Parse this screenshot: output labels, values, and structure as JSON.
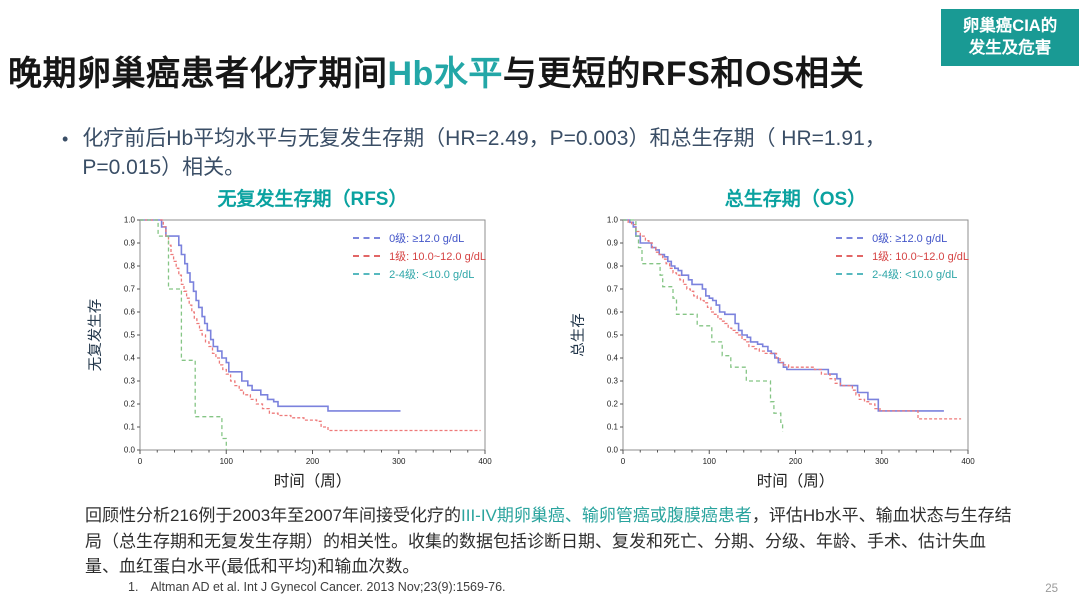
{
  "colors": {
    "accent_teal": "#199a94",
    "title_highlight_teal": "#23a7a7",
    "chart_title_teal": "#0aa2a0",
    "bullet_navy": "#3a4e66",
    "curve_blue": "#7b82dd",
    "curve_red": "#ee7a7a",
    "curve_green": "#85c585"
  },
  "badge": {
    "line1": "卵巢癌CIA的",
    "line2": "发生及危害"
  },
  "title": {
    "pre": "晚期卵巢癌患者化疗期间",
    "highlight": "Hb水平",
    "post": "与更短的RFS和OS相关"
  },
  "bullet": {
    "marker": "•",
    "text": "化疗前后Hb平均水平与无复发生存期（HR=2.49，P=0.003）和总生存期（ HR=1.91，P=0.015）相关。"
  },
  "chart_data": [
    {
      "type": "line",
      "title": "无复发生存期（RFS）",
      "xlabel": "时间（周）",
      "ylabel": "无复发生存",
      "xlim": [
        0,
        400
      ],
      "ylim": [
        0,
        1
      ],
      "xticks": [
        0,
        100,
        200,
        300,
        400
      ],
      "yticks": [
        0.0,
        0.1,
        0.2,
        0.3,
        0.4,
        0.5,
        0.6,
        0.7,
        0.8,
        0.9,
        1.0
      ],
      "grid": false,
      "legend_position": "top-right-inside",
      "series": [
        {
          "name": "0级:  ≥12.0 g/dL",
          "color": "#7b82dd",
          "dash": "",
          "width": 1.6,
          "text_color": "#4355c8",
          "dash_color": "#7b84dc",
          "points": [
            [
              0,
              1.0
            ],
            [
              22,
              1.0
            ],
            [
              25,
              0.97
            ],
            [
              30,
              0.93
            ],
            [
              42,
              0.93
            ],
            [
              45,
              0.89
            ],
            [
              48,
              0.85
            ],
            [
              52,
              0.81
            ],
            [
              55,
              0.77
            ],
            [
              58,
              0.73
            ],
            [
              62,
              0.69
            ],
            [
              65,
              0.65
            ],
            [
              68,
              0.62
            ],
            [
              72,
              0.58
            ],
            [
              75,
              0.55
            ],
            [
              78,
              0.52
            ],
            [
              82,
              0.48
            ],
            [
              85,
              0.45
            ],
            [
              90,
              0.43
            ],
            [
              95,
              0.4
            ],
            [
              100,
              0.38
            ],
            [
              103,
              0.34
            ],
            [
              115,
              0.34
            ],
            [
              118,
              0.3
            ],
            [
              125,
              0.28
            ],
            [
              130,
              0.26
            ],
            [
              140,
              0.24
            ],
            [
              148,
              0.22
            ],
            [
              155,
              0.21
            ],
            [
              160,
              0.19
            ],
            [
              216,
              0.19
            ],
            [
              218,
              0.17
            ],
            [
              302,
              0.17
            ]
          ]
        },
        {
          "name": "1级:  10.0~12.0 g/dL",
          "color": "#ee7a7a",
          "dash": "3 2",
          "width": 1.3,
          "text_color": "#d54343",
          "dash_color": "#e26666",
          "points": [
            [
              0,
              1.0
            ],
            [
              25,
              1.0
            ],
            [
              27,
              0.97
            ],
            [
              30,
              0.93
            ],
            [
              33,
              0.89
            ],
            [
              36,
              0.85
            ],
            [
              39,
              0.82
            ],
            [
              42,
              0.79
            ],
            [
              45,
              0.76
            ],
            [
              48,
              0.72
            ],
            [
              51,
              0.69
            ],
            [
              54,
              0.66
            ],
            [
              57,
              0.63
            ],
            [
              60,
              0.6
            ],
            [
              63,
              0.57
            ],
            [
              66,
              0.55
            ],
            [
              69,
              0.52
            ],
            [
              72,
              0.5
            ],
            [
              76,
              0.47
            ],
            [
              80,
              0.45
            ],
            [
              84,
              0.42
            ],
            [
              88,
              0.4
            ],
            [
              92,
              0.37
            ],
            [
              96,
              0.35
            ],
            [
              100,
              0.33
            ],
            [
              105,
              0.3
            ],
            [
              110,
              0.28
            ],
            [
              115,
              0.26
            ],
            [
              120,
              0.24
            ],
            [
              128,
              0.22
            ],
            [
              135,
              0.2
            ],
            [
              142,
              0.18
            ],
            [
              150,
              0.16
            ],
            [
              160,
              0.15
            ],
            [
              175,
              0.14
            ],
            [
              190,
              0.13
            ],
            [
              205,
              0.125
            ],
            [
              210,
              0.1
            ],
            [
              218,
              0.085
            ],
            [
              395,
              0.085
            ]
          ]
        },
        {
          "name": "2-4级:  <10.0 g/dL",
          "color": "#85c585",
          "dash": "4 3",
          "width": 1.3,
          "text_color": "#2ea6a8",
          "dash_color": "#57b9bf",
          "points": [
            [
              0,
              1.0
            ],
            [
              20,
              1.0
            ],
            [
              21,
              0.93
            ],
            [
              31,
              0.93
            ],
            [
              33,
              0.7
            ],
            [
              47,
              0.7
            ],
            [
              48,
              0.39
            ],
            [
              62,
              0.39
            ],
            [
              64,
              0.145
            ],
            [
              93,
              0.145
            ],
            [
              95,
              0.05
            ],
            [
              99,
              0.05
            ],
            [
              100,
              0.0
            ]
          ]
        }
      ]
    },
    {
      "type": "line",
      "title": "总生存期（OS）",
      "xlabel": "时间（周）",
      "ylabel": "总生存",
      "xlim": [
        0,
        400
      ],
      "ylim": [
        0,
        1
      ],
      "xticks": [
        0,
        100,
        200,
        300,
        400
      ],
      "yticks": [
        0.0,
        0.1,
        0.2,
        0.3,
        0.4,
        0.5,
        0.6,
        0.7,
        0.8,
        0.9,
        1.0
      ],
      "grid": false,
      "legend_position": "top-right-inside",
      "series": [
        {
          "name": "0级:  ≥12.0 g/dL",
          "color": "#7b82dd",
          "dash": "",
          "width": 1.6,
          "text_color": "#4355c8",
          "dash_color": "#7b84dc",
          "points": [
            [
              0,
              1.0
            ],
            [
              8,
              0.99
            ],
            [
              12,
              0.97
            ],
            [
              15,
              0.93
            ],
            [
              20,
              0.9
            ],
            [
              30,
              0.9
            ],
            [
              33,
              0.88
            ],
            [
              38,
              0.87
            ],
            [
              42,
              0.85
            ],
            [
              48,
              0.84
            ],
            [
              52,
              0.82
            ],
            [
              56,
              0.8
            ],
            [
              60,
              0.79
            ],
            [
              64,
              0.78
            ],
            [
              68,
              0.76
            ],
            [
              72,
              0.76
            ],
            [
              76,
              0.74
            ],
            [
              80,
              0.72
            ],
            [
              88,
              0.72
            ],
            [
              92,
              0.7
            ],
            [
              96,
              0.67
            ],
            [
              100,
              0.66
            ],
            [
              104,
              0.65
            ],
            [
              108,
              0.63
            ],
            [
              112,
              0.6
            ],
            [
              118,
              0.59
            ],
            [
              126,
              0.59
            ],
            [
              130,
              0.55
            ],
            [
              134,
              0.52
            ],
            [
              138,
              0.5
            ],
            [
              144,
              0.49
            ],
            [
              148,
              0.47
            ],
            [
              156,
              0.46
            ],
            [
              162,
              0.45
            ],
            [
              168,
              0.43
            ],
            [
              172,
              0.42
            ],
            [
              176,
              0.4
            ],
            [
              180,
              0.38
            ],
            [
              186,
              0.36
            ],
            [
              190,
              0.35
            ],
            [
              230,
              0.35
            ],
            [
              238,
              0.33
            ],
            [
              248,
              0.31
            ],
            [
              252,
              0.28
            ],
            [
              268,
              0.28
            ],
            [
              272,
              0.25
            ],
            [
              282,
              0.25
            ],
            [
              284,
              0.22
            ],
            [
              294,
              0.22
            ],
            [
              296,
              0.17
            ],
            [
              372,
              0.17
            ]
          ]
        },
        {
          "name": "1级:  10.0~12.0 g/dL",
          "color": "#ee7a7a",
          "dash": "3 2",
          "width": 1.3,
          "text_color": "#d54343",
          "dash_color": "#e26666",
          "points": [
            [
              0,
              1.0
            ],
            [
              6,
              0.99
            ],
            [
              10,
              0.98
            ],
            [
              15,
              0.95
            ],
            [
              20,
              0.93
            ],
            [
              26,
              0.91
            ],
            [
              30,
              0.9
            ],
            [
              34,
              0.88
            ],
            [
              38,
              0.86
            ],
            [
              42,
              0.85
            ],
            [
              46,
              0.83
            ],
            [
              50,
              0.81
            ],
            [
              54,
              0.79
            ],
            [
              58,
              0.77
            ],
            [
              62,
              0.76
            ],
            [
              66,
              0.74
            ],
            [
              70,
              0.72
            ],
            [
              74,
              0.7
            ],
            [
              78,
              0.69
            ],
            [
              82,
              0.67
            ],
            [
              86,
              0.66
            ],
            [
              90,
              0.65
            ],
            [
              94,
              0.64
            ],
            [
              98,
              0.62
            ],
            [
              102,
              0.6
            ],
            [
              106,
              0.59
            ],
            [
              110,
              0.57
            ],
            [
              114,
              0.56
            ],
            [
              118,
              0.55
            ],
            [
              122,
              0.53
            ],
            [
              126,
              0.52
            ],
            [
              130,
              0.51
            ],
            [
              134,
              0.5
            ],
            [
              138,
              0.48
            ],
            [
              142,
              0.47
            ],
            [
              146,
              0.45
            ],
            [
              152,
              0.44
            ],
            [
              158,
              0.43
            ],
            [
              164,
              0.42
            ],
            [
              172,
              0.42
            ],
            [
              178,
              0.4
            ],
            [
              182,
              0.38
            ],
            [
              186,
              0.37
            ],
            [
              192,
              0.36
            ],
            [
              214,
              0.36
            ],
            [
              222,
              0.35
            ],
            [
              230,
              0.33
            ],
            [
              240,
              0.31
            ],
            [
              246,
              0.29
            ],
            [
              252,
              0.28
            ],
            [
              262,
              0.28
            ],
            [
              266,
              0.26
            ],
            [
              270,
              0.24
            ],
            [
              274,
              0.22
            ],
            [
              280,
              0.21
            ],
            [
              286,
              0.2
            ],
            [
              292,
              0.18
            ],
            [
              298,
              0.17
            ],
            [
              339,
              0.17
            ],
            [
              342,
              0.135
            ],
            [
              392,
              0.135
            ]
          ]
        },
        {
          "name": "2-4级:  <10.0 g/dL",
          "color": "#85c585",
          "dash": "4 3",
          "width": 1.3,
          "text_color": "#2ea6a8",
          "dash_color": "#57b9bf",
          "points": [
            [
              0,
              1.0
            ],
            [
              12,
              1.0
            ],
            [
              15,
              0.93
            ],
            [
              18,
              0.88
            ],
            [
              22,
              0.81
            ],
            [
              40,
              0.81
            ],
            [
              43,
              0.76
            ],
            [
              46,
              0.71
            ],
            [
              56,
              0.71
            ],
            [
              58,
              0.66
            ],
            [
              62,
              0.59
            ],
            [
              84,
              0.59
            ],
            [
              86,
              0.54
            ],
            [
              100,
              0.54
            ],
            [
              103,
              0.47
            ],
            [
              112,
              0.47
            ],
            [
              115,
              0.41
            ],
            [
              122,
              0.41
            ],
            [
              125,
              0.36
            ],
            [
              140,
              0.36
            ],
            [
              143,
              0.3
            ],
            [
              168,
              0.3
            ],
            [
              171,
              0.21
            ],
            [
              175,
              0.16
            ],
            [
              181,
              0.16
            ],
            [
              183,
              0.12
            ],
            [
              185,
              0.08
            ]
          ]
        }
      ]
    }
  ],
  "footnote": {
    "pre": "回顾性分析216例于2003年至2007年间接受化疗的",
    "highlight": "III-IV期卵巢癌、输卵管癌或腹膜癌患者",
    "post": "，评估Hb水平、输血状态与生存结局（总生存期和无复发生存期）的相关性。收集的数据包括诊断日期、复发和死亡、分期、分级、年龄、手术、估计失血量、血红蛋白水平(最低和平均)和输血次数。"
  },
  "reference": {
    "index": "1.",
    "text": "Altman AD et al. Int J Gynecol Cancer. 2013 Nov;23(9):1569-76."
  },
  "page_number": "25"
}
